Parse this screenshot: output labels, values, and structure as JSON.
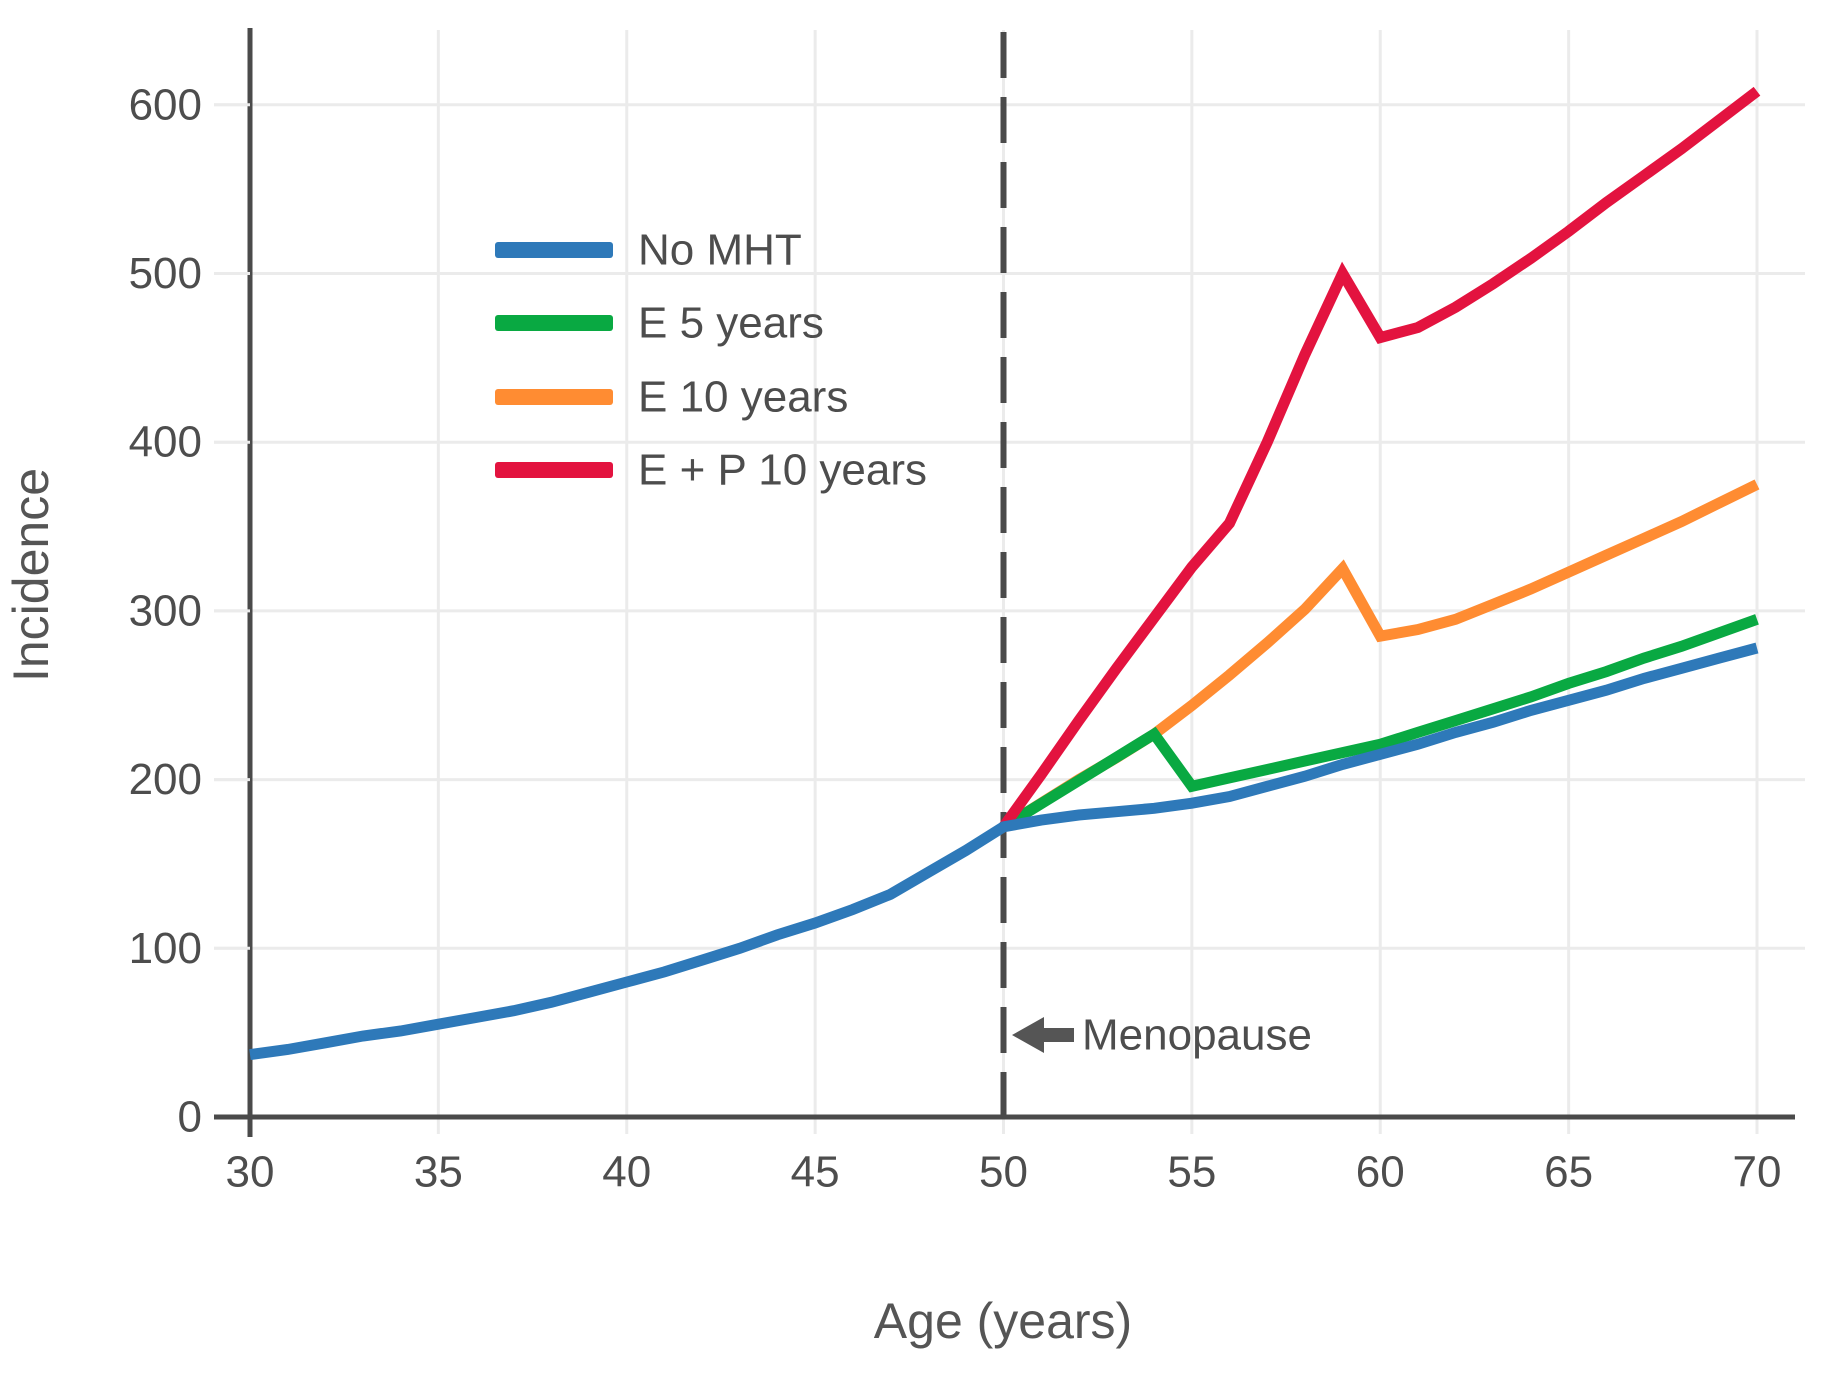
{
  "chart_data": {
    "type": "line",
    "title": "",
    "xlabel": "Age (years)",
    "ylabel": "Incidence",
    "xlim": [
      30,
      70
    ],
    "ylim": [
      0,
      644
    ],
    "x_ticks": [
      30,
      35,
      40,
      45,
      50,
      55,
      60,
      65,
      70
    ],
    "y_ticks": [
      0,
      100,
      200,
      300,
      400,
      500,
      600
    ],
    "grid": true,
    "legend_position": "upper-left-inside",
    "background_color": "#ffffff",
    "gridline_color": "#ebebeb",
    "axis_color": "#4a4a4a",
    "menopause_line": {
      "x": 50,
      "style": "dashed",
      "color": "#4a4a4a"
    },
    "annotation": {
      "text": "Menopause",
      "arrow": "left",
      "x": 50,
      "y": 50
    },
    "series": [
      {
        "name": "No MHT",
        "color": "#2e79b9",
        "points": [
          [
            30,
            37
          ],
          [
            31,
            40
          ],
          [
            32,
            44
          ],
          [
            33,
            48
          ],
          [
            34,
            51
          ],
          [
            35,
            55
          ],
          [
            36,
            59
          ],
          [
            37,
            63
          ],
          [
            38,
            68
          ],
          [
            39,
            74
          ],
          [
            40,
            80
          ],
          [
            41,
            86
          ],
          [
            42,
            93
          ],
          [
            43,
            100
          ],
          [
            44,
            108
          ],
          [
            45,
            115
          ],
          [
            46,
            123
          ],
          [
            47,
            132
          ],
          [
            48,
            145
          ],
          [
            49,
            158
          ],
          [
            50,
            172
          ],
          [
            51,
            176
          ],
          [
            52,
            179
          ],
          [
            53,
            181
          ],
          [
            54,
            183
          ],
          [
            55,
            186
          ],
          [
            56,
            190
          ],
          [
            57,
            196
          ],
          [
            58,
            202
          ],
          [
            59,
            209
          ],
          [
            60,
            215
          ],
          [
            61,
            221
          ],
          [
            62,
            228
          ],
          [
            63,
            234
          ],
          [
            64,
            241
          ],
          [
            65,
            247
          ],
          [
            66,
            253
          ],
          [
            67,
            260
          ],
          [
            68,
            266
          ],
          [
            69,
            272
          ],
          [
            70,
            278
          ]
        ]
      },
      {
        "name": "E 5 years",
        "color": "#09a942",
        "points": [
          [
            50,
            172
          ],
          [
            54,
            227
          ],
          [
            55,
            196
          ],
          [
            56,
            201
          ],
          [
            57,
            206
          ],
          [
            58,
            211
          ],
          [
            59,
            216
          ],
          [
            60,
            221
          ],
          [
            61,
            228
          ],
          [
            62,
            235
          ],
          [
            63,
            242
          ],
          [
            64,
            249
          ],
          [
            65,
            257
          ],
          [
            66,
            264
          ],
          [
            67,
            272
          ],
          [
            68,
            279
          ],
          [
            69,
            287
          ],
          [
            70,
            295
          ]
        ]
      },
      {
        "name": "E 10 years",
        "color": "#ff8c32",
        "points": [
          [
            50,
            172
          ],
          [
            51,
            186
          ],
          [
            52,
            200
          ],
          [
            53,
            213
          ],
          [
            54,
            227
          ],
          [
            55,
            244
          ],
          [
            56,
            262
          ],
          [
            57,
            281
          ],
          [
            58,
            301
          ],
          [
            59,
            325
          ],
          [
            60,
            285
          ],
          [
            61,
            289
          ],
          [
            62,
            295
          ],
          [
            63,
            304
          ],
          [
            64,
            313
          ],
          [
            65,
            323
          ],
          [
            66,
            333
          ],
          [
            67,
            343
          ],
          [
            68,
            353
          ],
          [
            69,
            364
          ],
          [
            70,
            375
          ]
        ]
      },
      {
        "name": "E + P 10 years",
        "color": "#e3133f",
        "points": [
          [
            50,
            172
          ],
          [
            51,
            203
          ],
          [
            52,
            235
          ],
          [
            53,
            266
          ],
          [
            54,
            296
          ],
          [
            55,
            326
          ],
          [
            56,
            352
          ],
          [
            57,
            400
          ],
          [
            58,
            452
          ],
          [
            59,
            500
          ],
          [
            60,
            462
          ],
          [
            61,
            468
          ],
          [
            62,
            480
          ],
          [
            63,
            494
          ],
          [
            64,
            509
          ],
          [
            65,
            525
          ],
          [
            66,
            542
          ],
          [
            67,
            558
          ],
          [
            68,
            574
          ],
          [
            69,
            591
          ],
          [
            70,
            608
          ]
        ]
      }
    ],
    "draw_order": [
      2,
      1,
      3,
      0
    ],
    "line_width": 11
  }
}
